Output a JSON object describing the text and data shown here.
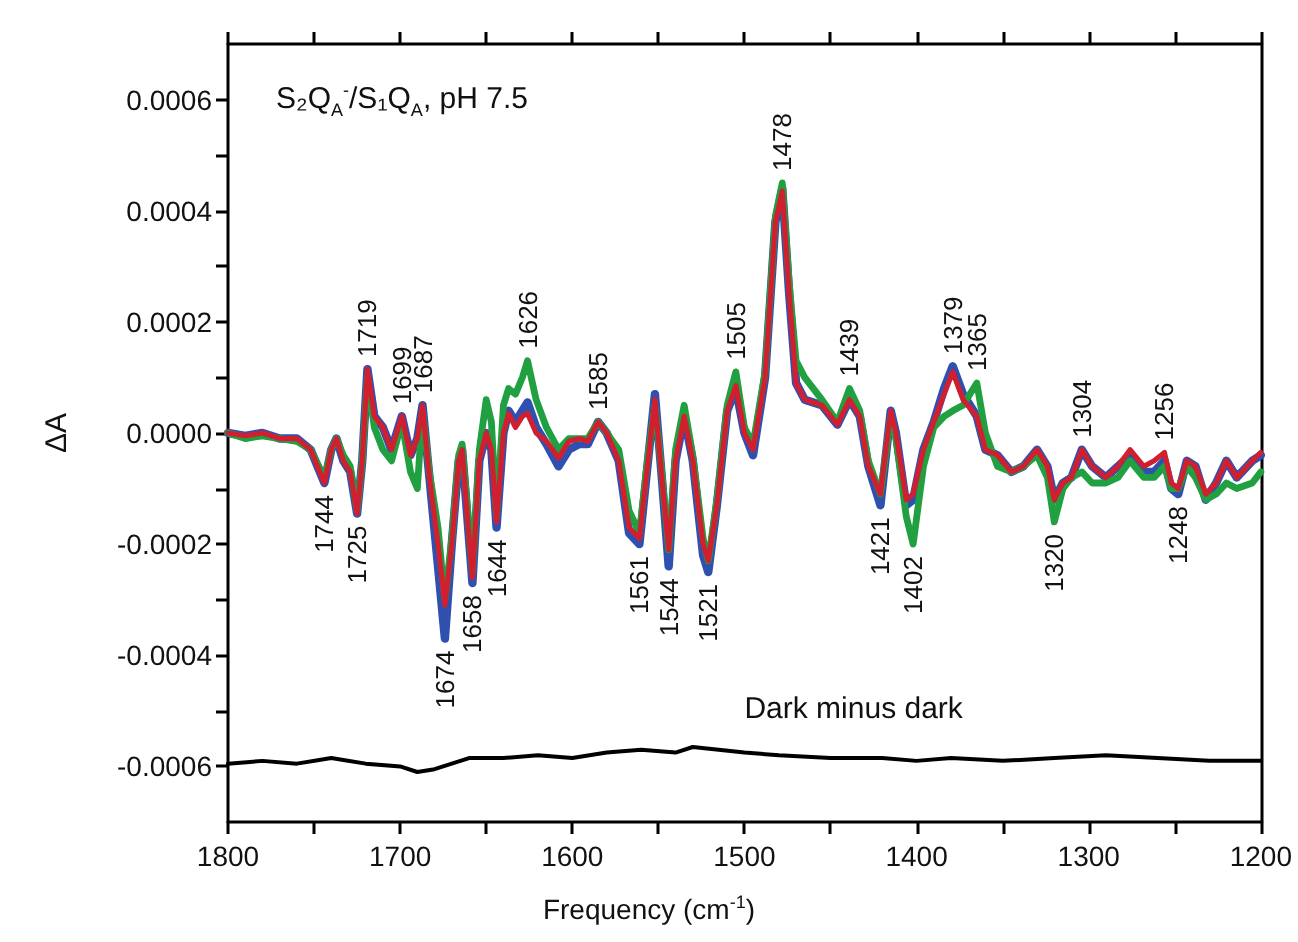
{
  "chart_data": {
    "type": "line",
    "title": "S₂Q$_{A}$$^{-}$/S₁Q$_{A}$, pH 7.5",
    "xlabel": "Frequency (cm$^{-1}$)",
    "ylabel": "ΔA",
    "xlim": [
      1800,
      1200
    ],
    "xticks": [
      1800,
      {
        "value": 1750,
        "label": null
      },
      1700,
      {
        "value": 1650,
        "label": null
      },
      1600,
      {
        "value": 1550,
        "label": null
      },
      1500,
      {
        "value": 1450,
        "label": null
      },
      1400,
      {
        "value": 1350,
        "label": null
      },
      1300,
      {
        "value": 1250,
        "label": null
      },
      1200
    ],
    "ylim": [
      -0.0007,
      0.0007
    ],
    "yticks": [
      {
        "value": -0.0006,
        "label": "-0.0006"
      },
      {
        "value": -0.0005,
        "label": null
      },
      {
        "value": -0.0004,
        "label": "-0.0004"
      },
      {
        "value": -0.0003,
        "label": null
      },
      {
        "value": -0.0002,
        "label": "-0.0002"
      },
      {
        "value": -0.0001,
        "label": null
      },
      {
        "value": 0,
        "label": "0.0000"
      },
      {
        "value": 0.0001,
        "label": null
      },
      {
        "value": 0.0002,
        "label": "0.0002"
      },
      {
        "value": 0.0003,
        "label": null
      },
      {
        "value": 0.0004,
        "label": "0.0004"
      },
      {
        "value": 0.0005,
        "label": null
      },
      {
        "value": 0.0006,
        "label": "0.0006"
      }
    ],
    "grid": false,
    "legend": false,
    "marker": "none",
    "line_style": "solid",
    "x": [
      1800,
      1790,
      1780,
      1770,
      1760,
      1752,
      1744,
      1740,
      1737,
      1733,
      1729,
      1725,
      1722,
      1719,
      1715,
      1710,
      1705,
      1699,
      1694,
      1690,
      1687,
      1683,
      1678,
      1674,
      1670,
      1666,
      1664,
      1661,
      1658,
      1654,
      1650,
      1647,
      1644,
      1640,
      1637,
      1633,
      1629,
      1626,
      1621,
      1615,
      1608,
      1602,
      1596,
      1591,
      1585,
      1580,
      1573,
      1567,
      1561,
      1556,
      1552,
      1548,
      1544,
      1540,
      1535,
      1530,
      1524,
      1521,
      1516,
      1510,
      1505,
      1500,
      1495,
      1488,
      1482,
      1478,
      1474,
      1470,
      1465,
      1455,
      1446,
      1439,
      1433,
      1428,
      1421,
      1415,
      1412,
      1406,
      1402,
      1396,
      1390,
      1384,
      1379,
      1373,
      1365,
      1360,
      1353,
      1345,
      1338,
      1330,
      1324,
      1320,
      1315,
      1310,
      1304,
      1298,
      1290,
      1283,
      1276,
      1268,
      1262,
      1256,
      1252,
      1248,
      1243,
      1238,
      1232,
      1226,
      1220,
      1214,
      1205,
      1200
    ],
    "series": [
      {
        "color": "#3050b0",
        "values": [
          0,
          -5e-06,
          0,
          -1e-05,
          -1e-05,
          -3e-05,
          -9e-05,
          -3e-05,
          -1e-05,
          -5e-05,
          -7e-05,
          -0.000145,
          -5e-05,
          0.000115,
          3e-05,
          1e-05,
          -3e-05,
          3e-05,
          -4e-05,
          -1e-05,
          5e-05,
          -8e-05,
          -0.00024,
          -0.00037,
          -0.0002,
          -5e-05,
          -3e-05,
          -0.00015,
          -0.00027,
          -5e-05,
          0,
          -3e-05,
          -0.00017,
          0,
          4e-05,
          2e-05,
          4e-05,
          5.5e-05,
          1e-05,
          -2e-05,
          -6e-05,
          -3e-05,
          -2e-05,
          -2e-05,
          2e-05,
          0,
          -5e-05,
          -0.00018,
          -0.0002,
          -5e-05,
          7e-05,
          -8e-05,
          -0.00024,
          -5e-05,
          3e-05,
          -5e-05,
          -0.00022,
          -0.00025,
          -0.00013,
          4e-05,
          8e-05,
          0,
          -4e-05,
          0.0001,
          0.00038,
          0.00044,
          0.00025,
          9e-05,
          6e-05,
          5e-05,
          1.5e-05,
          6e-05,
          3e-05,
          -6e-05,
          -0.00013,
          4e-05,
          0,
          -0.00013,
          -0.00012,
          -3e-05,
          2e-05,
          8e-05,
          0.00012,
          7e-05,
          3e-05,
          -3e-05,
          -4e-05,
          -7e-05,
          -6e-05,
          -3e-05,
          -6e-05,
          -0.00012,
          -9e-05,
          -8e-05,
          -3e-05,
          -6e-05,
          -8e-05,
          -6e-05,
          -4e-05,
          -7e-05,
          -7e-05,
          -5e-05,
          -0.0001,
          -0.00011,
          -5e-05,
          -6e-05,
          -0.00012,
          -9e-05,
          -5e-05,
          -8e-05,
          -5e-05,
          -4e-05
        ]
      },
      {
        "color": "#20a040",
        "values": [
          0,
          -1e-05,
          -5e-06,
          -1e-05,
          -1.5e-05,
          -3e-05,
          -8e-05,
          -3e-05,
          -1e-05,
          -4e-05,
          -6e-05,
          -0.00014,
          -5e-05,
          0.0001,
          1e-05,
          -3e-05,
          -5e-05,
          2e-05,
          -7e-05,
          -0.0001,
          4e-05,
          -7e-05,
          -0.00017,
          -0.0003,
          -0.00019,
          -4e-05,
          -2e-05,
          -0.00013,
          -0.00025,
          -3e-05,
          6e-05,
          2e-05,
          -0.00015,
          5e-05,
          8e-05,
          7e-05,
          0.0001,
          0.00013,
          6e-05,
          1e-05,
          -3e-05,
          -1e-05,
          -1e-05,
          -1e-05,
          2e-05,
          0,
          -3e-05,
          -0.00014,
          -0.00018,
          -4e-05,
          5e-05,
          -7e-05,
          -0.00021,
          -3e-05,
          5e-05,
          -4e-05,
          -0.00019,
          -0.00023,
          -0.00012,
          5e-05,
          0.00011,
          1e-05,
          -2e-05,
          0.00011,
          0.00039,
          0.00045,
          0.00027,
          0.00013,
          0.0001,
          6e-05,
          2e-05,
          8e-05,
          4e-05,
          -5e-05,
          -0.00011,
          3e-05,
          -1e-05,
          -0.00015,
          -0.0002,
          -6e-05,
          1e-05,
          3e-05,
          4e-05,
          5e-05,
          9e-05,
          0,
          -6e-05,
          -7e-05,
          -6e-05,
          -4e-05,
          -8e-05,
          -0.00016,
          -0.0001,
          -8e-05,
          -7e-05,
          -9e-05,
          -9e-05,
          -8e-05,
          -5e-05,
          -8e-05,
          -8e-05,
          -6e-05,
          -0.0001,
          -0.0001,
          -6e-05,
          -8e-05,
          -0.00012,
          -0.00011,
          -9e-05,
          -0.0001,
          -9e-05,
          -7e-05
        ]
      },
      {
        "color": "#d02030",
        "values": [
          0,
          -5e-06,
          0,
          -1e-05,
          -1e-05,
          -3e-05,
          -9e-05,
          -3e-05,
          -1e-05,
          -5e-05,
          -7e-05,
          -0.000145,
          -5e-05,
          0.000115,
          3e-05,
          1e-05,
          -3e-05,
          3e-05,
          -4e-05,
          -1e-05,
          5e-05,
          -8e-05,
          -0.0002,
          -0.00031,
          -0.0002,
          -5e-05,
          -3e-05,
          -0.00015,
          -0.00026,
          -5e-05,
          0,
          -3e-05,
          -0.00016,
          0,
          3.5e-05,
          1e-05,
          3e-05,
          3.5e-05,
          0,
          -1.5e-05,
          -4.5e-05,
          -1.5e-05,
          -1e-05,
          -1.5e-05,
          2e-05,
          0,
          -5e-05,
          -0.00017,
          -0.00019,
          -5e-05,
          6e-05,
          -8e-05,
          -0.00021,
          -5e-05,
          3e-05,
          -5e-05,
          -0.0002,
          -0.00023,
          -0.00013,
          4e-05,
          8.5e-05,
          0,
          -3e-05,
          0.0001,
          0.00038,
          0.000435,
          0.00025,
          9e-05,
          6e-05,
          5e-05,
          1.5e-05,
          6e-05,
          3e-05,
          -6e-05,
          -0.00011,
          4e-05,
          0,
          -0.00012,
          -0.00011,
          -3e-05,
          2e-05,
          7e-05,
          0.00011,
          6e-05,
          3e-05,
          -3e-05,
          -4e-05,
          -7e-05,
          -6e-05,
          -3e-05,
          -6e-05,
          -0.00012,
          -9e-05,
          -8e-05,
          -3e-05,
          -6e-05,
          -8e-05,
          -6e-05,
          -3e-05,
          -6e-05,
          -5e-05,
          -3.5e-05,
          -9e-05,
          -0.0001,
          -5e-05,
          -6e-05,
          -0.00011,
          -9e-05,
          -5e-05,
          -8e-05,
          -5e-05,
          -3.5e-05
        ]
      },
      {
        "name": "Dark minus dark",
        "color": "#000000",
        "x": [
          1800,
          1780,
          1760,
          1740,
          1720,
          1700,
          1690,
          1680,
          1670,
          1660,
          1640,
          1620,
          1600,
          1580,
          1560,
          1540,
          1530,
          1500,
          1480,
          1450,
          1420,
          1400,
          1380,
          1350,
          1320,
          1290,
          1260,
          1230,
          1200
        ],
        "values": [
          -0.000595,
          -0.00059,
          -0.000595,
          -0.000585,
          -0.000595,
          -0.0006,
          -0.00061,
          -0.000605,
          -0.000595,
          -0.000585,
          -0.000585,
          -0.00058,
          -0.000585,
          -0.000575,
          -0.00057,
          -0.000575,
          -0.000565,
          -0.000575,
          -0.00058,
          -0.000585,
          -0.000585,
          -0.00059,
          -0.000585,
          -0.00059,
          -0.000585,
          -0.00058,
          -0.000585,
          -0.00059,
          -0.00059
        ]
      }
    ],
    "annotations": [
      {
        "text": "1744",
        "x": 1744,
        "y": -9e-05
      },
      {
        "text": "1725",
        "x": 1725,
        "y": -0.000145
      },
      {
        "text": "1719",
        "x": 1719,
        "y": 0.000115
      },
      {
        "text": "1699",
        "x": 1699,
        "y": 3e-05
      },
      {
        "text": "1687",
        "x": 1687,
        "y": 5e-05
      },
      {
        "text": "1674",
        "x": 1674,
        "y": -0.00037
      },
      {
        "text": "1658",
        "x": 1658,
        "y": -0.00027
      },
      {
        "text": "1644",
        "x": 1644,
        "y": -0.00017
      },
      {
        "text": "1626",
        "x": 1626,
        "y": 0.00013
      },
      {
        "text": "1585",
        "x": 1585,
        "y": 2e-05
      },
      {
        "text": "1561",
        "x": 1561,
        "y": -0.0002
      },
      {
        "text": "1544",
        "x": 1544,
        "y": -0.00024
      },
      {
        "text": "1521",
        "x": 1521,
        "y": -0.00025
      },
      {
        "text": "1505",
        "x": 1505,
        "y": 0.00011
      },
      {
        "text": "1478",
        "x": 1478,
        "y": 0.00045
      },
      {
        "text": "1439",
        "x": 1439,
        "y": 8e-05
      },
      {
        "text": "1421",
        "x": 1421,
        "y": -0.00013
      },
      {
        "text": "1402",
        "x": 1402,
        "y": -0.0002
      },
      {
        "text": "1379",
        "x": 1379,
        "y": 0.00012
      },
      {
        "text": "1365",
        "x": 1365,
        "y": 9e-05
      },
      {
        "text": "1320",
        "x": 1320,
        "y": -0.00016
      },
      {
        "text": "1304",
        "x": 1304,
        "y": -3e-05
      },
      {
        "text": "1256",
        "x": 1256,
        "y": -3.5e-05
      },
      {
        "text": "1248",
        "x": 1248,
        "y": -0.00011
      }
    ]
  }
}
